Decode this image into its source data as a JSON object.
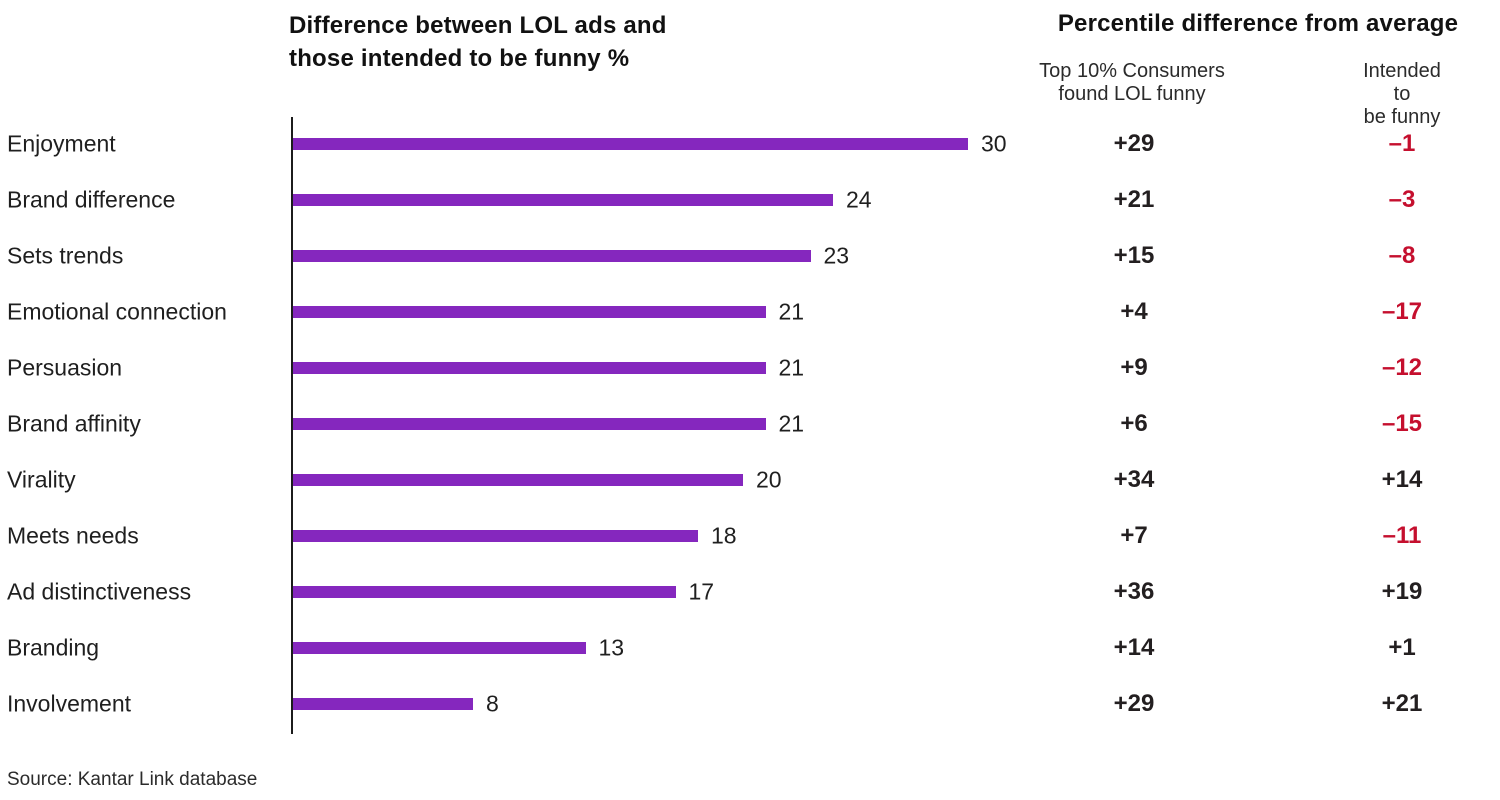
{
  "left_title": {
    "line1": "Difference between LOL ads and",
    "line2": "those intended to be funny %"
  },
  "right_panel": {
    "title": "Percentile difference from average",
    "col1_header": "Top 10% Consumers\nfound LOL funny",
    "col2_header": "Intended to\nbe funny"
  },
  "source": "Source: Kantar Link database",
  "colors": {
    "bar_purple": "#8527be",
    "negative_red": "#c50f2e",
    "text_dark": "#231f20",
    "axis_black": "#1c1c1c"
  },
  "chart_data": {
    "type": "bar",
    "orientation": "horizontal",
    "title": "Difference between LOL ads and those intended to be funny %",
    "categories": [
      "Enjoyment",
      "Brand difference",
      "Sets trends",
      "Emotional connection",
      "Persuasion",
      "Brand affinity",
      "Virality",
      "Meets needs",
      "Ad distinctiveness",
      "Branding",
      "Involvement"
    ],
    "series": [
      {
        "name": "Difference between LOL ads and those intended to be funny %",
        "values": [
          30,
          24,
          23,
          21,
          21,
          21,
          20,
          18,
          17,
          13,
          8
        ]
      },
      {
        "name": "Top 10% Consumers found LOL funny",
        "values": [
          29,
          21,
          15,
          4,
          9,
          6,
          34,
          7,
          36,
          14,
          29
        ]
      },
      {
        "name": "Intended to be funny",
        "values": [
          -1,
          -3,
          -8,
          -17,
          -12,
          -15,
          14,
          -11,
          19,
          1,
          21
        ]
      }
    ],
    "xlim": [
      0,
      30
    ],
    "value_labels": "on",
    "grid": "off",
    "legend": "none",
    "signed_number_format": "+/-",
    "negative_color_rule": "negative values shown in red"
  }
}
